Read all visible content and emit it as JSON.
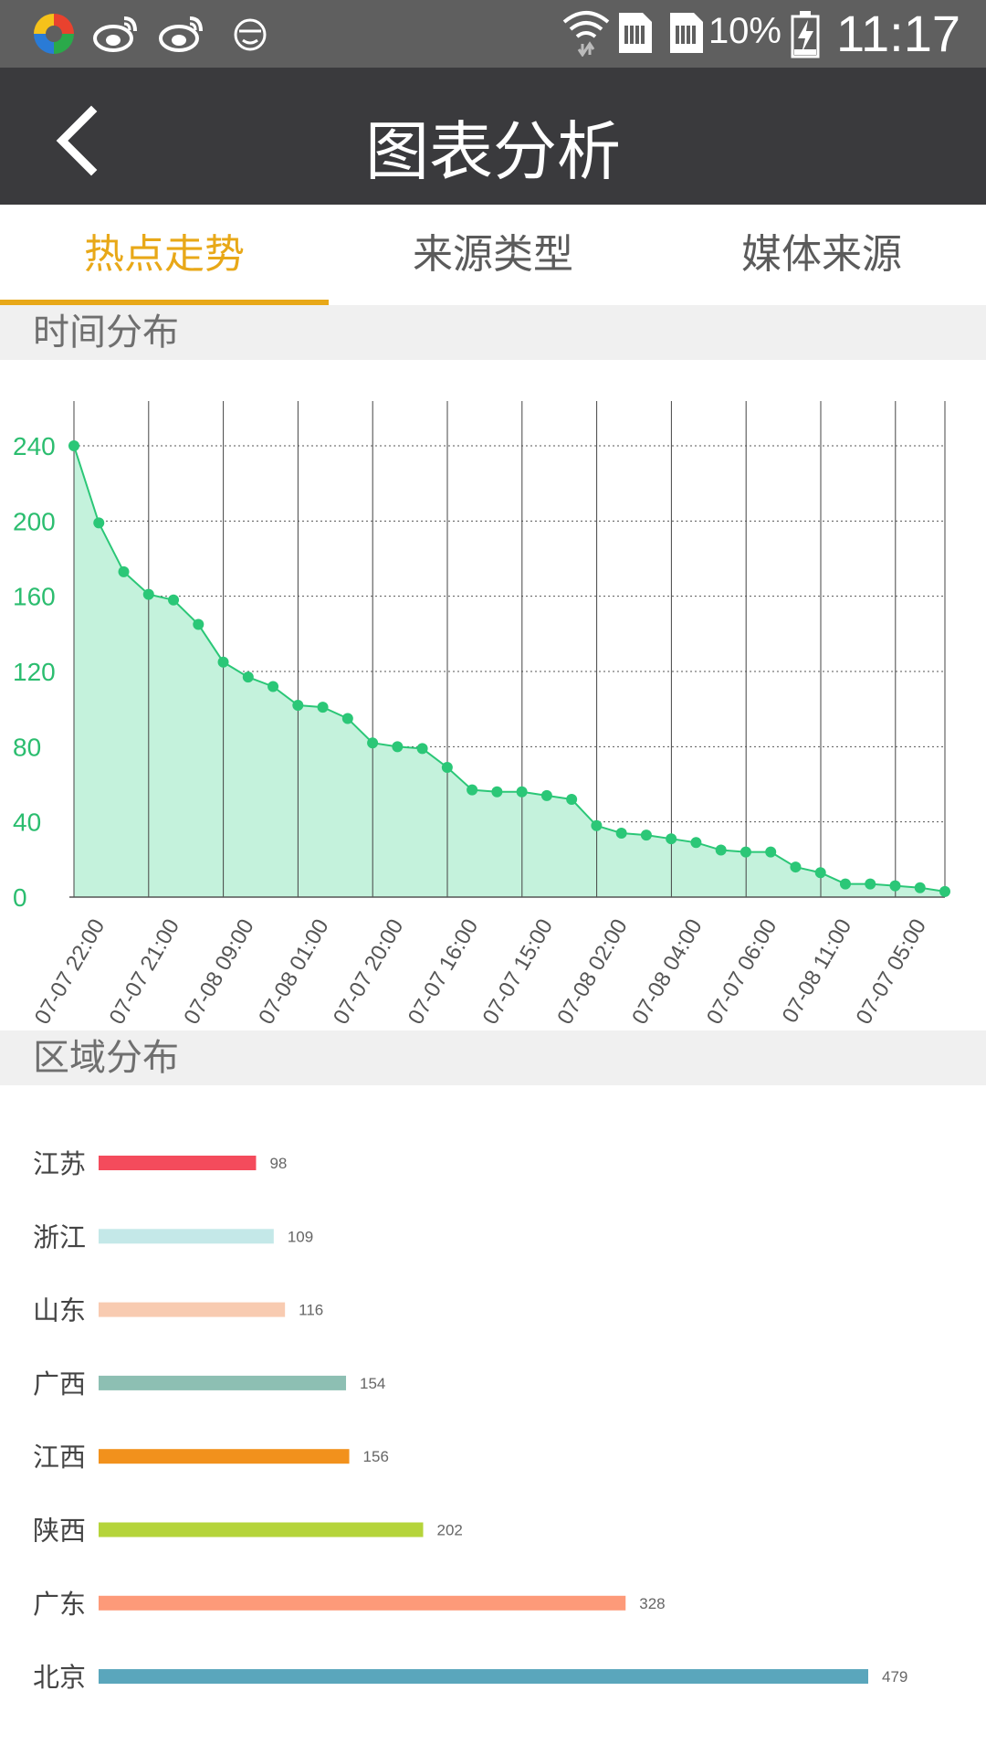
{
  "status_bar": {
    "time": "11:17",
    "battery": "10%",
    "icons": [
      "app-icon",
      "weibo-icon",
      "weibo-icon",
      "face-icon",
      "wifi-icon",
      "sim-icon",
      "sim-icon",
      "battery-charging-icon"
    ]
  },
  "app_bar": {
    "title": "图表分析",
    "back_icon": "chevron-left-icon"
  },
  "tabs": [
    {
      "label": "热点走势",
      "active": true
    },
    {
      "label": "来源类型",
      "active": false
    },
    {
      "label": "媒体来源",
      "active": false
    }
  ],
  "colors": {
    "accent": "#e8a818",
    "line": "#2bc777",
    "area": "#c4f2dc",
    "header_bg": "#3a3a3d",
    "status_bg": "#5f5f5f"
  },
  "sections": {
    "time": {
      "title": "时间分布"
    },
    "region": {
      "title": "区域分布"
    }
  },
  "chart_data": [
    {
      "type": "area",
      "ylim": [
        0,
        240
      ],
      "yticks": [
        0,
        40,
        80,
        120,
        160,
        200,
        240
      ],
      "xtick_labels": [
        "07-07 22:00",
        "07-07 21:00",
        "07-08 09:00",
        "07-08 01:00",
        "07-07 20:00",
        "07-07 16:00",
        "07-07 15:00",
        "07-08 02:00",
        "07-08 04:00",
        "07-07 06:00",
        "07-08 11:00",
        "07-07 05:00"
      ],
      "values": [
        240,
        199,
        173,
        161,
        158,
        145,
        125,
        117,
        112,
        102,
        101,
        95,
        82,
        80,
        79,
        69,
        57,
        56,
        56,
        54,
        52,
        38,
        34,
        33,
        31,
        29,
        25,
        24,
        24,
        16,
        13,
        7,
        7,
        6,
        5,
        3
      ],
      "grid": true
    },
    {
      "type": "bar",
      "orientation": "horizontal",
      "categories": [
        "江苏",
        "浙江",
        "山东",
        "广西",
        "江西",
        "陕西",
        "广东",
        "北京"
      ],
      "values": [
        98,
        109,
        116,
        154,
        156,
        202,
        328,
        479
      ],
      "colors": [
        "#f44b5c",
        "#c4e8e8",
        "#f8cbb1",
        "#8dbfb3",
        "#f2911c",
        "#b5d43a",
        "#fd9a79",
        "#5aa6bc"
      ],
      "xlim": [
        0,
        479
      ]
    }
  ]
}
